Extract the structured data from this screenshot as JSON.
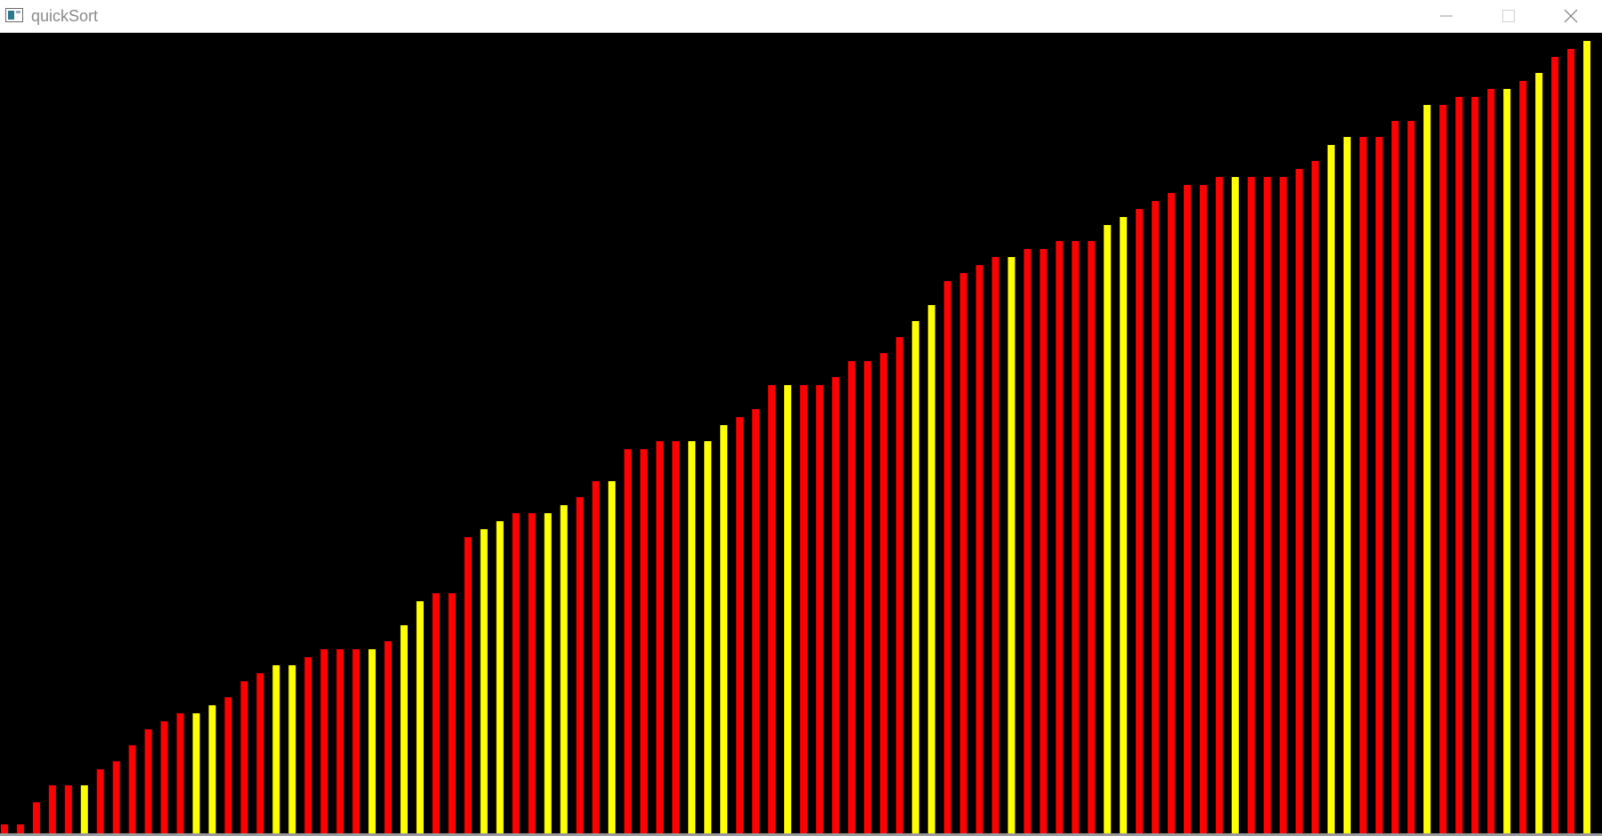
{
  "window": {
    "title": "quickSort",
    "icon": "app-window-icon",
    "controls": {
      "minimize_icon": "minimize-icon",
      "maximize_icon": "maximize-icon",
      "close_icon": "close-icon"
    }
  },
  "chart_data": {
    "type": "bar",
    "title": "",
    "xlabel": "",
    "ylabel": "",
    "ylim": [
      0,
      900
    ],
    "colors": {
      "red": "#ff0000",
      "yellow": "#ffff00",
      "background": "#000000"
    },
    "values": [
      10,
      10,
      35,
      54,
      54,
      54,
      72,
      81,
      99,
      117,
      126,
      135,
      135,
      144,
      153,
      171,
      180,
      189,
      189,
      198,
      207,
      207,
      207,
      207,
      216,
      234,
      261,
      270,
      270,
      333,
      342,
      351,
      360,
      360,
      360,
      369,
      378,
      396,
      396,
      432,
      432,
      441,
      441,
      441,
      441,
      459,
      468,
      477,
      504,
      504,
      504,
      504,
      513,
      531,
      531,
      540,
      558,
      576,
      594,
      621,
      630,
      639,
      648,
      648,
      657,
      657,
      666,
      666,
      666,
      684,
      693,
      702,
      711,
      720,
      729,
      729,
      738,
      738,
      738,
      738,
      738,
      747,
      756,
      774,
      783,
      783,
      783,
      801,
      801,
      819,
      819,
      828,
      828,
      837,
      837,
      846,
      855,
      873,
      882,
      891
    ],
    "bar_colors": [
      "red",
      "red",
      "red",
      "red",
      "red",
      "yellow",
      "red",
      "red",
      "red",
      "red",
      "red",
      "red",
      "yellow",
      "yellow",
      "red",
      "red",
      "red",
      "yellow",
      "yellow",
      "red",
      "red",
      "red",
      "red",
      "yellow",
      "red",
      "yellow",
      "yellow",
      "red",
      "red",
      "red",
      "yellow",
      "yellow",
      "red",
      "red",
      "yellow",
      "yellow",
      "red",
      "red",
      "yellow",
      "red",
      "red",
      "red",
      "red",
      "yellow",
      "yellow",
      "yellow",
      "red",
      "red",
      "red",
      "yellow",
      "red",
      "red",
      "red",
      "red",
      "red",
      "red",
      "red",
      "yellow",
      "yellow",
      "red",
      "red",
      "red",
      "red",
      "yellow",
      "red",
      "red",
      "red",
      "red",
      "red",
      "yellow",
      "yellow",
      "red",
      "red",
      "red",
      "red",
      "red",
      "red",
      "yellow",
      "red",
      "red",
      "red",
      "red",
      "red",
      "yellow",
      "yellow",
      "red",
      "red",
      "red",
      "red",
      "yellow",
      "red",
      "red",
      "red",
      "red",
      "yellow",
      "red",
      "yellow",
      "red",
      "red",
      "yellow"
    ]
  }
}
